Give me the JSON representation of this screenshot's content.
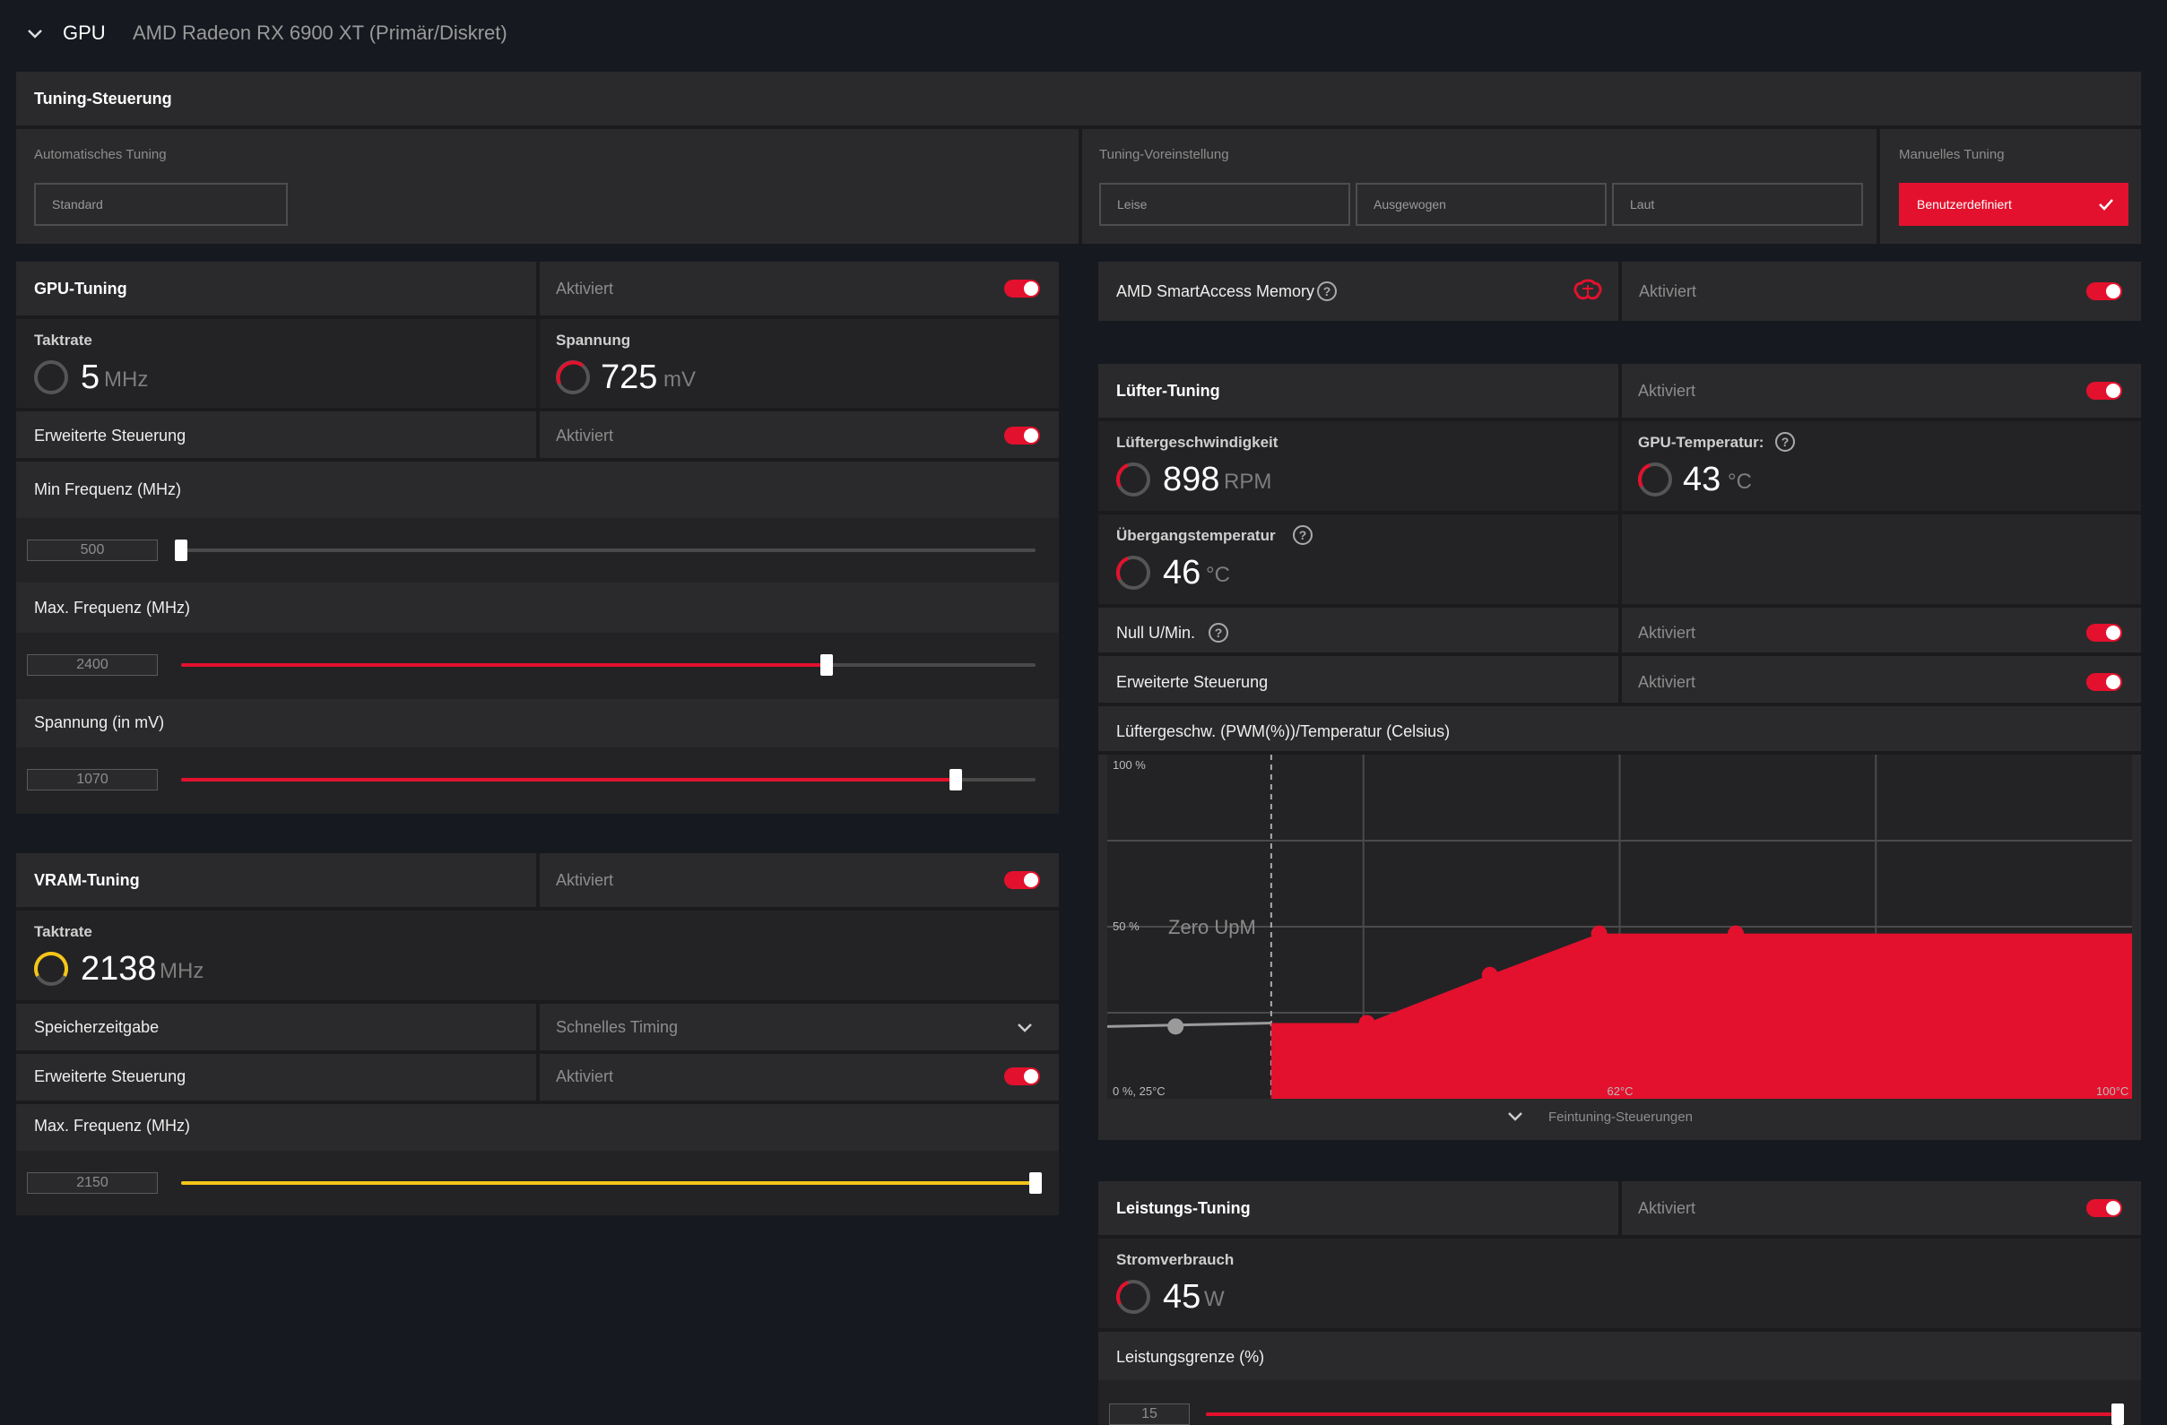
{
  "header": {
    "section": "GPU",
    "device": "AMD Radeon RX 6900 XT (Primär/Diskret)"
  },
  "tuning_control": {
    "title": "Tuning-Steuerung",
    "auto_label": "Automatisches Tuning",
    "auto_value": "Standard",
    "preset_label": "Tuning-Voreinstellung",
    "presets": [
      "Leise",
      "Ausgewogen",
      "Laut"
    ],
    "manual_label": "Manuelles Tuning",
    "manual_value": "Benutzerdefiniert"
  },
  "gpu_tuning": {
    "title": "GPU-Tuning",
    "status": "Aktiviert",
    "enabled": true,
    "clock": {
      "label": "Taktrate",
      "value": "5",
      "unit": "MHz"
    },
    "voltage": {
      "label": "Spannung",
      "value": "725",
      "unit": "mV"
    },
    "advanced": {
      "label": "Erweiterte Steuerung",
      "status": "Aktiviert",
      "enabled": true
    },
    "min_freq": {
      "label": "Min Frequenz (MHz)",
      "value": "500",
      "fraction": 0.0
    },
    "max_freq": {
      "label": "Max. Frequenz (MHz)",
      "value": "2400",
      "fraction": 0.755
    },
    "volt_slider": {
      "label": "Spannung (in mV)",
      "value": "1070",
      "fraction": 0.907
    }
  },
  "vram_tuning": {
    "title": "VRAM-Tuning",
    "status": "Aktiviert",
    "enabled": true,
    "clock": {
      "label": "Taktrate",
      "value": "2138",
      "unit": "MHz"
    },
    "timing": {
      "label": "Speicherzeitgabe",
      "value": "Schnelles Timing"
    },
    "advanced": {
      "label": "Erweiterte Steuerung",
      "status": "Aktiviert",
      "enabled": true
    },
    "max_freq": {
      "label": "Max. Frequenz (MHz)",
      "value": "2150",
      "fraction": 1.0
    }
  },
  "sam": {
    "label": "AMD SmartAccess Memory",
    "status": "Aktiviert",
    "enabled": true
  },
  "fan_tuning": {
    "title": "Lüfter-Tuning",
    "status": "Aktiviert",
    "enabled": true,
    "fan_speed": {
      "label": "Lüftergeschwindigkeit",
      "value": "898",
      "unit": "RPM"
    },
    "gpu_temp": {
      "label": "GPU-Temperatur:",
      "value": "43",
      "unit": "°C"
    },
    "junction": {
      "label": "Übergangstemperatur",
      "value": "46",
      "unit": "°C"
    },
    "zero_rpm": {
      "label": "Null U/Min.",
      "status": "Aktiviert",
      "enabled": true
    },
    "advanced": {
      "label": "Erweiterte Steuerung",
      "status": "Aktiviert",
      "enabled": true
    },
    "curve_title": "Lüftergeschw. (PWM(%))/Temperatur (Celsius)",
    "fine_tuning": "Feintuning-Steuerungen"
  },
  "chart_data": {
    "type": "area",
    "title": "Lüftergeschw. (PWM(%))/Temperatur (Celsius)",
    "y_tick_labels": [
      "100 %",
      "50 %",
      "0 %, 25°C"
    ],
    "x_tick_labels": [
      "62°C",
      "100°C"
    ],
    "zero_label": "Zero UpM",
    "xlim": [
      25,
      100
    ],
    "ylim": [
      0,
      100
    ],
    "zero_rpm_threshold": 37,
    "series": [
      {
        "x": [
          30,
          37,
          44,
          53,
          61,
          71,
          100
        ],
        "y": [
          21,
          22,
          22,
          36,
          48,
          48,
          48
        ]
      }
    ],
    "points": [
      {
        "x": 30,
        "y": 21,
        "color": "#9a9a9a"
      },
      {
        "x": 44,
        "y": 22,
        "color": "#e3112d"
      },
      {
        "x": 53,
        "y": 36,
        "color": "#e3112d"
      },
      {
        "x": 61,
        "y": 48,
        "color": "#e3112d"
      },
      {
        "x": 71,
        "y": 48,
        "color": "#e3112d"
      }
    ],
    "colors": {
      "fill": "#e3112d",
      "grid": "#4a4a4a"
    }
  },
  "power_tuning": {
    "title": "Leistungs-Tuning",
    "status": "Aktiviert",
    "enabled": true,
    "power": {
      "label": "Stromverbrauch",
      "value": "45",
      "unit": "W"
    },
    "limit": {
      "label": "Leistungsgrenze (%)",
      "value": "15",
      "fraction": 1.0
    }
  },
  "colors": {
    "accent": "#e3112d",
    "vram": "#f5c518",
    "background": "#16191f",
    "panel": "#2a2a2c"
  }
}
